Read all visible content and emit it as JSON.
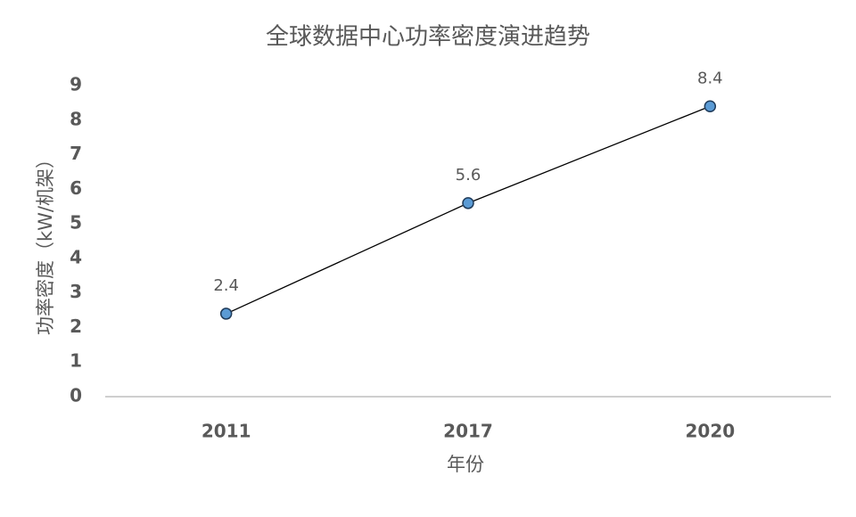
{
  "chart_data": {
    "type": "line",
    "title": "全球数据中心功率密度演进趋势",
    "x_label": "年份",
    "y_label": "功率密度（kW/机架）",
    "categories": [
      "2011",
      "2017",
      "2020"
    ],
    "values": [
      2.4,
      5.6,
      8.4
    ],
    "color": "#5b9bd5",
    "line_color": "#000000",
    "ylim": [
      0,
      9
    ],
    "yticks": [
      0,
      1,
      2,
      3,
      4,
      5,
      6,
      7,
      8,
      9
    ],
    "grid": false
  }
}
